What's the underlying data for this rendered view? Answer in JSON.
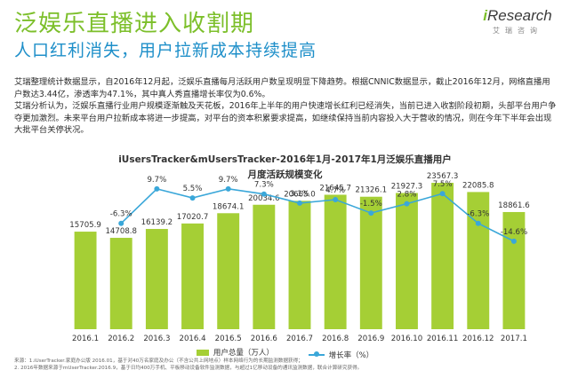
{
  "header": {
    "title": "泛娱乐直播进入收割期",
    "subtitle": "人口红利消失，用户拉新成本持续提高"
  },
  "logo": {
    "prefix": "i",
    "main": "Research",
    "sub": "艾瑞咨询"
  },
  "body": {
    "paragraphs": [
      "艾瑞整理统计数据显示，自2016年12月起，泛娱乐直播每月活跃用户数呈现明显下降趋势。根据CNNIC数据显示，截止2016年12月，网络直播用户数达3.44亿，渗透率为47.1%，其中真人秀直播增长率仅为0.6%。",
      "艾瑞分析认为，泛娱乐直播行业用户规模逐渐触及天花板，2016年上半年的用户快速增长红利已经消失，当前已进入收割阶段初期，头部平台用户争夺更加激烈。未来平台用户拉新成本将进一步提高，对平台的资本积累要求提高，如继续保持当前内容投入大于营收的情况，则在今年下半年会出现大批平台关停状况。"
    ]
  },
  "chart_data": {
    "type": "bar",
    "title": "iUsersTracker&mUsersTracker-2016年1月-2017年1月泛娱乐直播用户",
    "subtitle": "月度活跃规模变化",
    "categories": [
      "2016.1",
      "2016.2",
      "2016.3",
      "2016.4",
      "2016.5",
      "2016.6",
      "2016.7",
      "2016.8",
      "2016.9",
      "2016.10",
      "2016.11",
      "2016.12",
      "2017.1"
    ],
    "series": [
      {
        "name": "用户总量（万人）",
        "type": "bar",
        "color": "#a5cf35",
        "values": [
          15705.9,
          14708.8,
          16139.2,
          17020.7,
          18674.1,
          20034.6,
          20665.0,
          21645.7,
          21326.1,
          21927.3,
          23567.3,
          22085.8,
          18861.6
        ],
        "labels": [
          "15705.9",
          "14708.8",
          "16139.2",
          "17020.7",
          "18674.1",
          "20034.6",
          "20665.0",
          "21645.7",
          "21326.1",
          "21927.3",
          "23567.3",
          "22085.8",
          "18861.6"
        ]
      },
      {
        "name": "增长率（%）",
        "type": "line",
        "color": "#3aa7d9",
        "values": [
          null,
          -6.3,
          9.7,
          5.5,
          9.7,
          7.3,
          3.1,
          4.7,
          -1.5,
          2.8,
          7.5,
          -6.3,
          -14.6
        ],
        "labels": [
          "",
          "-6.3%",
          "9.7%",
          "5.5%",
          "9.7%",
          "7.3%",
          "3.1%",
          "4.7%",
          "-1.5%",
          "2.8%",
          "7.5%",
          "-6.3%",
          "-14.6%"
        ]
      }
    ],
    "bar_ylim": [
      0,
      25000
    ],
    "line_ylim": [
      -20,
      15
    ],
    "grid": false,
    "legend_position": "bottom"
  },
  "source": {
    "lines": [
      "来源：1.iUserTracker.家庭办公版 2016.01，基于对40万名家庭及办公（不含公共上网地点）样本网络行为的长期监测数据获得；",
      "2. 2016年数据来源于mUserTracker.2016.9，基于日均400万手机、平板移动设备软件监测数据，与超过1亿移动设备的通讯监测数据，联合计算研究获得。"
    ]
  }
}
